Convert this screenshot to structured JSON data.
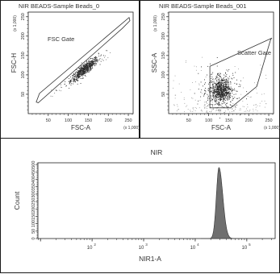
{
  "chart_data": [
    {
      "type": "scatter",
      "title": "NIR BEADS-Sample Beads_0",
      "xlabel": "FSC-A",
      "ylabel": "FSC-H",
      "x_multiplier": "(x 1,000)",
      "y_multiplier": "(x 1,000)",
      "xlim": [
        0,
        262
      ],
      "ylim": [
        0,
        262
      ],
      "x_ticks": [
        50,
        100,
        150,
        200,
        250
      ],
      "x_tick_labels": [
        "50",
        "100",
        "150",
        "200",
        "250"
      ],
      "y_ticks": [
        50,
        100,
        150,
        200,
        250
      ],
      "y_tick_labels": [
        "50",
        "100",
        "150",
        "200",
        "250"
      ],
      "gate": {
        "label": "FSC Gate",
        "polygon": [
          [
            20,
            30
          ],
          [
            28,
            52
          ],
          [
            252,
            248
          ],
          [
            254,
            240
          ],
          [
            235,
            220
          ],
          [
            25,
            28
          ]
        ]
      },
      "population": {
        "center": [
          140,
          115
        ],
        "spread": [
          22,
          7
        ],
        "diagonal": true
      }
    },
    {
      "type": "scatter",
      "title": "NIR BEADS-Sample Beads_001",
      "xlabel": "FSC-A",
      "ylabel": "SSC-A",
      "x_multiplier": "(x 1,000)",
      "y_multiplier": "(x 1,000)",
      "xlim": [
        0,
        262
      ],
      "ylim": [
        0,
        262
      ],
      "x_ticks": [
        50,
        100,
        150,
        200,
        250
      ],
      "x_tick_labels": [
        "50",
        "100",
        "150",
        "200",
        "250"
      ],
      "y_ticks": [
        50,
        100,
        150,
        200,
        250
      ],
      "y_tick_labels": [
        "50",
        "100",
        "150",
        "200",
        "250"
      ],
      "gate": {
        "label": "Scatter Gate",
        "polygon": [
          [
            103,
            15
          ],
          [
            103,
            122
          ],
          [
            120,
            130
          ],
          [
            258,
            195
          ],
          [
            255,
            192
          ],
          [
            220,
            70
          ],
          [
            155,
            15
          ]
        ]
      },
      "population": {
        "center": [
          130,
          60
        ],
        "spread": [
          13,
          16
        ],
        "diagonal": false
      }
    },
    {
      "type": "histogram",
      "title": "NIR",
      "xlabel": "NIR1-A",
      "ylabel": "Count",
      "x_scale": "log",
      "xlim_log10": [
        0.95,
        5.55
      ],
      "x_tick_labels": [
        "10",
        "10",
        "10",
        "10"
      ],
      "x_tick_exponents": [
        "2",
        "3",
        "4",
        "5"
      ],
      "x_tick_positions_log10": [
        2,
        3,
        4,
        5
      ],
      "ylim": [
        0,
        512
      ],
      "y_ticks": [
        0,
        50,
        100,
        150,
        200,
        250,
        300,
        350,
        400,
        450,
        500
      ],
      "y_tick_labels": [
        "0",
        "50",
        "100",
        "150",
        "200",
        "250",
        "300",
        "350",
        "400",
        "450",
        "500"
      ],
      "peak": {
        "center_log10": 4.46,
        "sd_left": 0.05,
        "sd_right": 0.075,
        "height": 480,
        "fill_color": "#6f6f6f"
      }
    }
  ]
}
